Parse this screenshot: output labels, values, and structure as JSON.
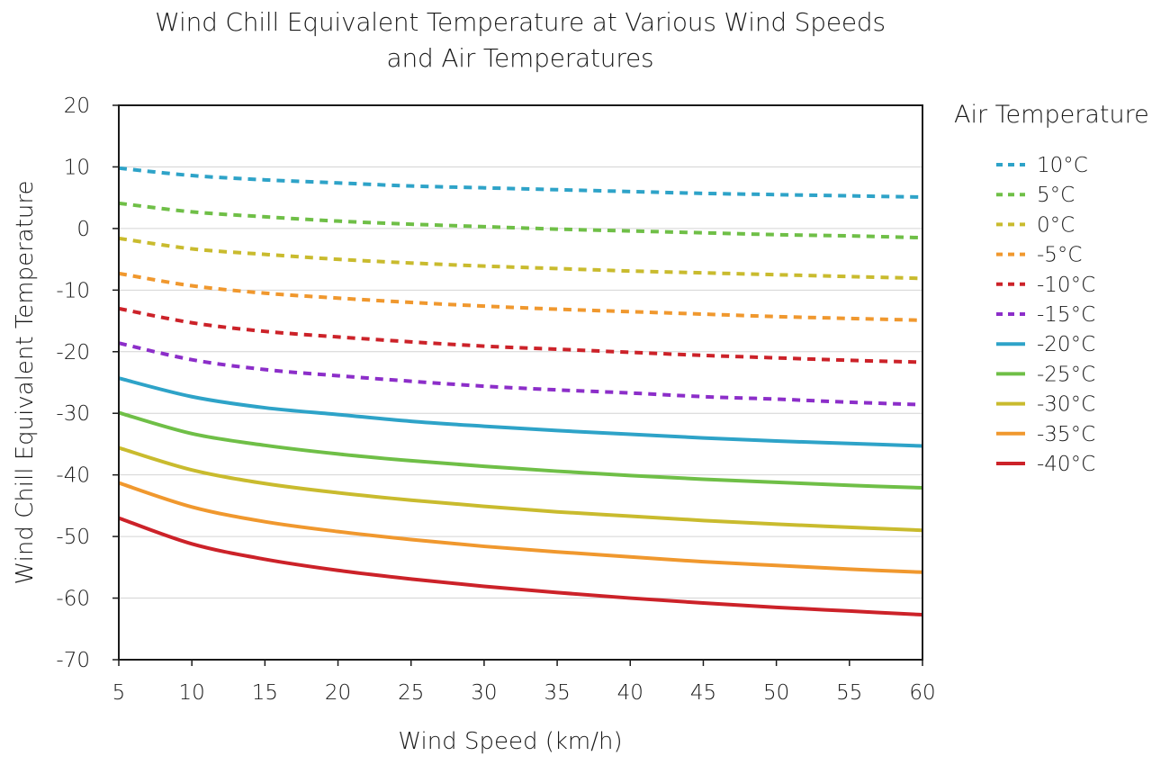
{
  "chart_data": {
    "type": "line",
    "title": [
      "Wind Chill Equivalent Temperature at Various Wind Speeds",
      "and Air Temperatures"
    ],
    "xlabel": "Wind Speed (km/h)",
    "ylabel": "Wind Chill Equivalent Temperature",
    "xlim": [
      5,
      60
    ],
    "ylim": [
      -70,
      20
    ],
    "x_ticks": [
      5,
      10,
      15,
      20,
      25,
      30,
      35,
      40,
      45,
      50,
      55,
      60
    ],
    "y_ticks": [
      20,
      10,
      0,
      -10,
      -20,
      -30,
      -40,
      -50,
      -60,
      -70
    ],
    "grid": "horizontal",
    "legend": {
      "title": "Air Temperature",
      "position": "right"
    },
    "x": [
      5,
      10,
      15,
      20,
      25,
      30,
      35,
      40,
      45,
      50,
      55,
      60
    ],
    "series": [
      {
        "name": "10°C",
        "air_temp": 10,
        "dashed": true,
        "color": "#2ea3c8",
        "values": [
          9.8,
          8.6,
          7.9,
          7.4,
          6.9,
          6.6,
          6.3,
          6.0,
          5.7,
          5.5,
          5.3,
          5.1
        ]
      },
      {
        "name": "5°C",
        "air_temp": 5,
        "dashed": true,
        "color": "#6fbf47",
        "values": [
          4.1,
          2.7,
          1.9,
          1.2,
          0.7,
          0.3,
          -0.1,
          -0.4,
          -0.7,
          -1.0,
          -1.2,
          -1.5
        ]
      },
      {
        "name": "0°C",
        "air_temp": 0,
        "dashed": true,
        "color": "#c9bb2e",
        "values": [
          -1.6,
          -3.3,
          -4.2,
          -5.0,
          -5.6,
          -6.1,
          -6.5,
          -6.9,
          -7.2,
          -7.5,
          -7.8,
          -8.1
        ]
      },
      {
        "name": "-5°C",
        "air_temp": -5,
        "dashed": true,
        "color": "#f0982e",
        "values": [
          -7.3,
          -9.3,
          -10.5,
          -11.3,
          -12.0,
          -12.6,
          -13.1,
          -13.5,
          -13.9,
          -14.3,
          -14.6,
          -14.9
        ]
      },
      {
        "name": "-10°C",
        "air_temp": -10,
        "dashed": true,
        "color": "#cc2229",
        "values": [
          -13.0,
          -15.3,
          -16.7,
          -17.6,
          -18.4,
          -19.1,
          -19.6,
          -20.1,
          -20.6,
          -21.0,
          -21.4,
          -21.7
        ]
      },
      {
        "name": "-15°C",
        "air_temp": -15,
        "dashed": true,
        "color": "#8c2ec9",
        "values": [
          -18.6,
          -21.3,
          -22.9,
          -23.9,
          -24.8,
          -25.6,
          -26.2,
          -26.7,
          -27.3,
          -27.7,
          -28.2,
          -28.6
        ]
      },
      {
        "name": "-20°C",
        "air_temp": -20,
        "dashed": false,
        "color": "#2ea3c8",
        "values": [
          -24.3,
          -27.3,
          -29.1,
          -30.2,
          -31.3,
          -32.1,
          -32.8,
          -33.4,
          -34.0,
          -34.5,
          -34.9,
          -35.3
        ]
      },
      {
        "name": "-25°C",
        "air_temp": -25,
        "dashed": false,
        "color": "#6fbf47",
        "values": [
          -29.9,
          -33.3,
          -35.2,
          -36.6,
          -37.7,
          -38.6,
          -39.4,
          -40.1,
          -40.7,
          -41.2,
          -41.7,
          -42.1
        ]
      },
      {
        "name": "-30°C",
        "air_temp": -30,
        "dashed": false,
        "color": "#c9bb2e",
        "values": [
          -35.6,
          -39.2,
          -41.4,
          -42.9,
          -44.1,
          -45.1,
          -46.0,
          -46.7,
          -47.4,
          -48.0,
          -48.5,
          -49.0
        ]
      },
      {
        "name": "-35°C",
        "air_temp": -35,
        "dashed": false,
        "color": "#f0982e",
        "values": [
          -41.3,
          -45.2,
          -47.6,
          -49.2,
          -50.5,
          -51.6,
          -52.5,
          -53.3,
          -54.1,
          -54.7,
          -55.3,
          -55.8
        ]
      },
      {
        "name": "-40°C",
        "air_temp": -40,
        "dashed": false,
        "color": "#cc2229",
        "values": [
          -47.0,
          -51.2,
          -53.7,
          -55.5,
          -56.9,
          -58.1,
          -59.1,
          -60.0,
          -60.8,
          -61.5,
          -62.1,
          -62.7
        ]
      }
    ]
  }
}
